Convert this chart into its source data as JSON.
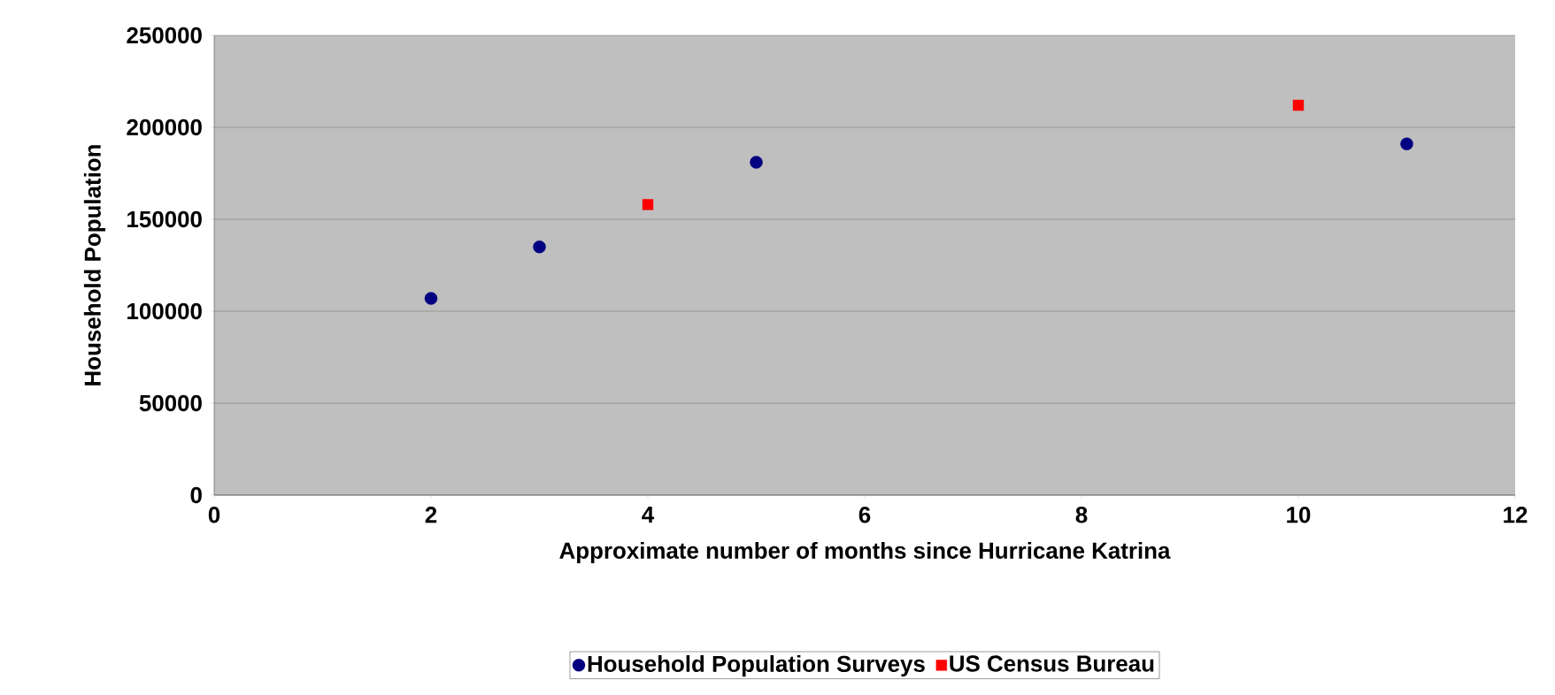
{
  "chart_data": {
    "type": "scatter",
    "xlabel": "Approximate number of months since Hurricane Katrina",
    "ylabel": "Household Population",
    "xlim": [
      0,
      12
    ],
    "xticks": [
      0,
      2,
      4,
      6,
      8,
      10,
      12
    ],
    "ylim": [
      0,
      250000
    ],
    "yticks": [
      0,
      50000,
      100000,
      150000,
      200000,
      250000
    ],
    "grid": "y",
    "legend": "bottom",
    "series": [
      {
        "name": "Household Population Surveys",
        "color": "#000080",
        "marker": "circle",
        "x": [
          2,
          3,
          5,
          11
        ],
        "values": [
          107000,
          135000,
          181000,
          191000
        ]
      },
      {
        "name": "US Census Bureau",
        "color": "#ff0000",
        "marker": "square",
        "x": [
          4,
          10
        ],
        "values": [
          158000,
          212000
        ]
      }
    ]
  }
}
